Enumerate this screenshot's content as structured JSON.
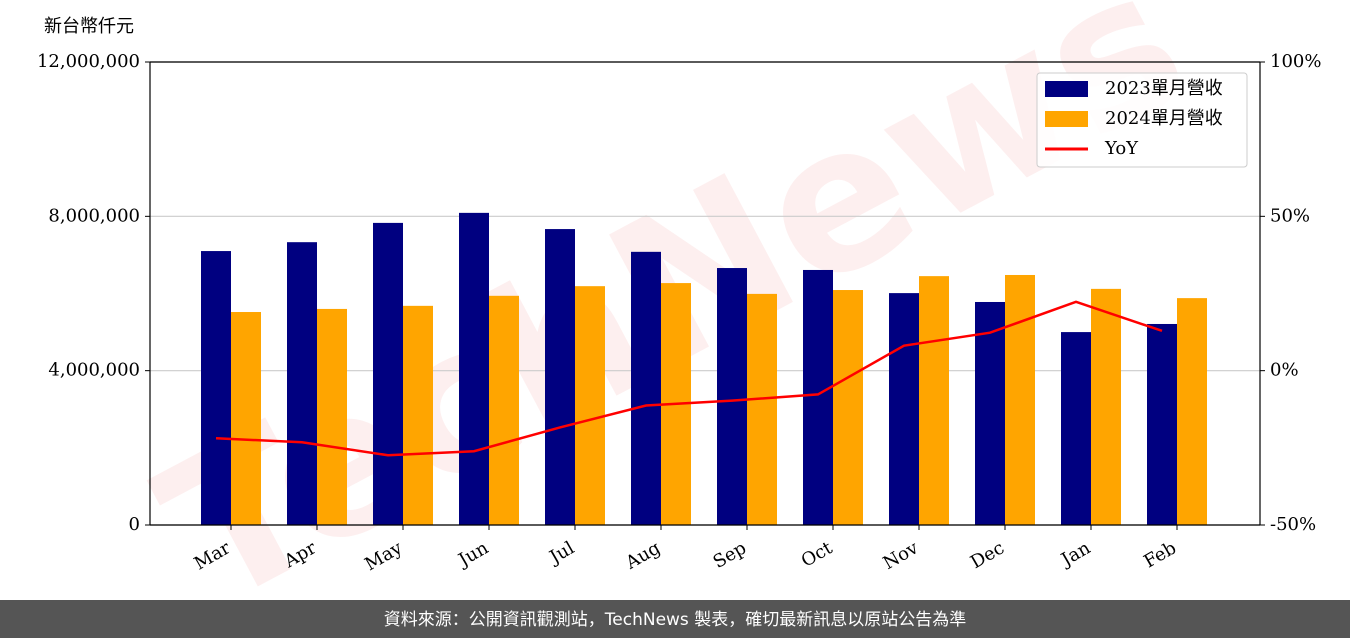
{
  "chart_data": {
    "type": "bar",
    "y_label": "新台幣仟元",
    "watermark": "TechNews",
    "source": "資料來源：公開資訊觀測站，TechNews 製表，確切最新訊息以原站公告為準",
    "categories": [
      "Mar",
      "Apr",
      "May",
      "Jun",
      "Jul",
      "Aug",
      "Sep",
      "Oct",
      "Nov",
      "Dec",
      "Jan",
      "Feb"
    ],
    "series": [
      {
        "name": "2023單月營收",
        "color": "#000080",
        "type": "bar",
        "values": [
          7100000,
          7330000,
          7830000,
          8090000,
          7670000,
          7080000,
          6660000,
          6610000,
          6010000,
          5780000,
          5000000,
          5210000
        ]
      },
      {
        "name": "2024單月營收",
        "color": "#ffa500",
        "type": "bar",
        "values": [
          5520000,
          5600000,
          5680000,
          5940000,
          6190000,
          6270000,
          5990000,
          6090000,
          6450000,
          6480000,
          6120000,
          5880000
        ]
      },
      {
        "name": "YoY",
        "color": "#ff0000",
        "type": "line",
        "axis": "y2",
        "values": [
          -21.9,
          -23.2,
          -27.4,
          -26.1,
          -18.4,
          -11.3,
          -9.7,
          -7.7,
          8.1,
          12.3,
          22.3,
          12.9
        ]
      }
    ],
    "ylim": [
      0,
      12000000
    ],
    "yticks": [
      0,
      {
        "value": 4000000,
        "label": "4,000,000"
      },
      {
        "value": 8000000,
        "label": "8,000,000"
      },
      {
        "value": 12000000,
        "label": "12,000,000"
      }
    ],
    "y2lim": [
      -50,
      100
    ],
    "y2ticks": [
      {
        "value": -50,
        "label": "-50%"
      },
      {
        "value": 0,
        "label": "0%"
      },
      {
        "value": 50,
        "label": "50%"
      },
      {
        "value": 100,
        "label": "100%"
      }
    ],
    "grid": true,
    "legend": "upper right"
  }
}
